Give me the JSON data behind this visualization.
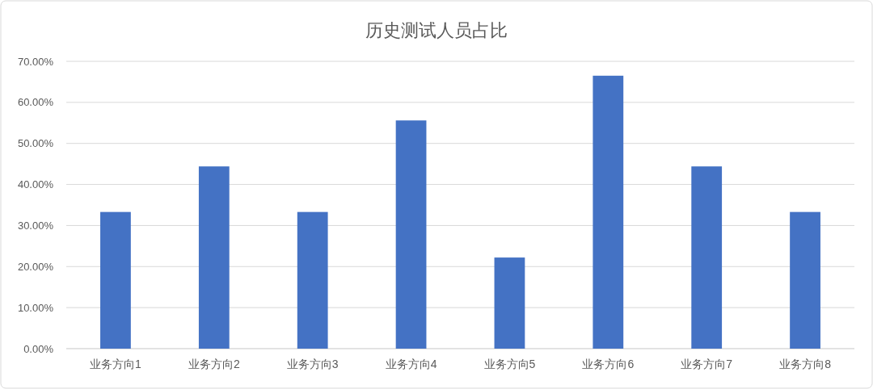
{
  "chart_data": {
    "type": "bar",
    "title": "历史测试人员占比",
    "categories": [
      "业务方向1",
      "业务方向2",
      "业务方向3",
      "业务方向4",
      "业务方向5",
      "业务方向6",
      "业务方向7",
      "业务方向8"
    ],
    "values": [
      33.3,
      44.4,
      33.3,
      55.6,
      22.2,
      66.5,
      44.4,
      33.3
    ],
    "color": "#4472c4",
    "ylim": [
      0,
      70
    ],
    "yticks": [
      {
        "value": 0,
        "label": "0.00%"
      },
      {
        "value": 10,
        "label": "10.00%"
      },
      {
        "value": 20,
        "label": "20.00%"
      },
      {
        "value": 30,
        "label": "30.00%"
      },
      {
        "value": 40,
        "label": "40.00%"
      },
      {
        "value": 50,
        "label": "50.00%"
      },
      {
        "value": 60,
        "label": "60.00%"
      },
      {
        "value": 70,
        "label": "70.00%"
      }
    ],
    "grid": "y"
  }
}
